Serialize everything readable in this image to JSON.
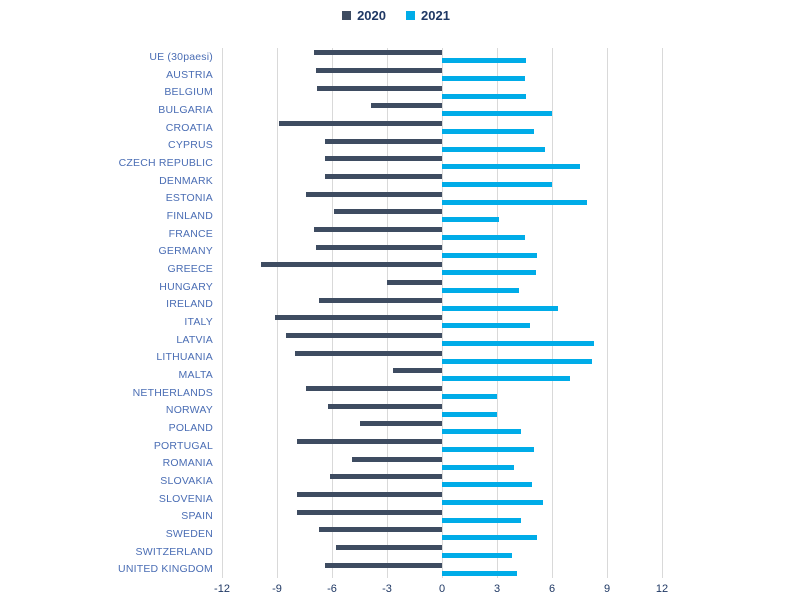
{
  "legend": {
    "items": [
      {
        "label": "2020",
        "color": "#3e4c61"
      },
      {
        "label": "2021",
        "color": "#00ace8"
      }
    ]
  },
  "chart_data": {
    "type": "bar",
    "orientation": "horizontal",
    "title": "",
    "xlabel": "",
    "ylabel": "",
    "xlim": [
      -12,
      12
    ],
    "x_ticks": [
      "-12",
      "-9",
      "-6",
      "-3",
      "0",
      "3",
      "6",
      "9",
      "12"
    ],
    "grid": "vertical",
    "gridline_color": "#d9d9d9",
    "legend_position": "top",
    "category_label_color": "#4a6db4",
    "tick_label_color": "#1f3864",
    "categories": [
      "UE (30paesi)",
      "AUSTRIA",
      "BELGIUM",
      "BULGARIA",
      "CROATIA",
      "CYPRUS",
      "CZECH REPUBLIC",
      "DENMARK",
      "ESTONIA",
      "FINLAND",
      "FRANCE",
      "GERMANY",
      "GREECE",
      "HUNGARY",
      "IRELAND",
      "ITALY",
      "LATVIA",
      "LITHUANIA",
      "MALTA",
      "NETHERLANDS",
      "NORWAY",
      "POLAND",
      "PORTUGAL",
      "ROMANIA",
      "SLOVAKIA",
      "SLOVENIA",
      "SPAIN",
      "SWEDEN",
      "SWITZERLAND",
      "UNITED KINGDOM"
    ],
    "series": [
      {
        "name": "2020",
        "color": "#3e4c61",
        "values": [
          -7.0,
          -6.9,
          -6.8,
          -3.9,
          -8.9,
          -6.4,
          -6.4,
          -6.4,
          -7.4,
          -5.9,
          -7.0,
          -6.9,
          -9.9,
          -3.0,
          -6.7,
          -9.1,
          -8.5,
          -8.0,
          -2.7,
          -7.4,
          -6.2,
          -4.5,
          -7.9,
          -4.9,
          -6.1,
          -7.9,
          -7.9,
          -6.7,
          -5.8,
          -6.4
        ]
      },
      {
        "name": "2021",
        "color": "#00ace8",
        "values": [
          4.6,
          4.5,
          4.6,
          6.0,
          5.0,
          5.6,
          7.5,
          6.0,
          7.9,
          3.1,
          4.5,
          5.2,
          5.1,
          4.2,
          6.3,
          4.8,
          8.3,
          8.2,
          7.0,
          3.0,
          3.0,
          4.3,
          5.0,
          3.9,
          4.9,
          5.5,
          4.3,
          5.2,
          3.8,
          4.1
        ]
      }
    ]
  }
}
